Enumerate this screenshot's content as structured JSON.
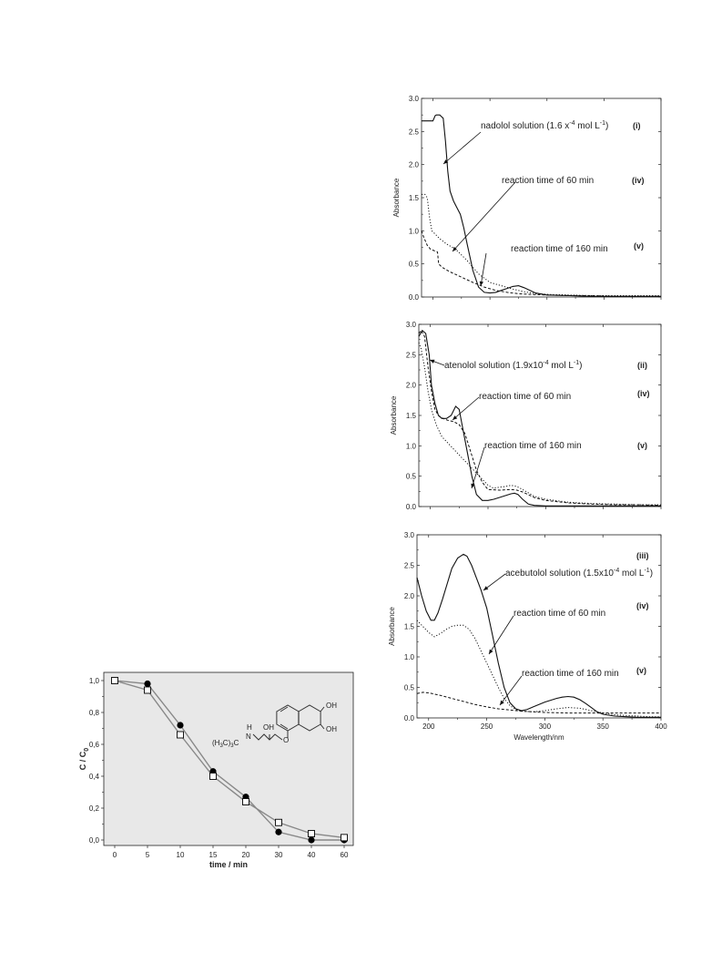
{
  "chart_data": [
    {
      "type": "line",
      "id": "nadolol",
      "xlim": [
        190,
        400
      ],
      "ylim": [
        0,
        3.0
      ],
      "yticks": [
        "0.0",
        "0.5",
        "1.0",
        "1.5",
        "2.0",
        "2.5",
        "3.0"
      ],
      "ylabel": "Absorbance",
      "annotations": [
        {
          "text": "nadolol solution (1.6 x",
          "sup": "-4",
          "tail": " mol L",
          "sup2": "-1",
          "close": ")",
          "tag": "(i)"
        },
        {
          "text": "reaction time of 60 min",
          "tag": "(iv)"
        },
        {
          "text": "reaction time of 160 min",
          "tag": "(v)"
        }
      ],
      "series": [
        {
          "style": "solid",
          "x": [
            190,
            192,
            200,
            202,
            203,
            206,
            209,
            211,
            213,
            215,
            218,
            221,
            224,
            227,
            230,
            235,
            240,
            245,
            250,
            255,
            260,
            265,
            270,
            275,
            280,
            290,
            300,
            320,
            340,
            360,
            380,
            400
          ],
          "y": [
            2.66,
            2.66,
            2.66,
            2.74,
            2.75,
            2.75,
            2.7,
            2.35,
            1.9,
            1.6,
            1.45,
            1.35,
            1.25,
            1.05,
            0.8,
            0.4,
            0.15,
            0.07,
            0.06,
            0.07,
            0.1,
            0.13,
            0.16,
            0.17,
            0.14,
            0.06,
            0.03,
            0.02,
            0.01,
            0.01,
            0.01,
            0.01
          ]
        },
        {
          "style": "dot",
          "x": [
            190,
            193,
            195,
            197,
            199,
            202,
            206,
            212,
            220,
            230,
            240,
            250,
            260,
            270,
            280,
            290,
            300,
            320,
            340,
            360,
            380,
            400
          ],
          "y": [
            1.55,
            1.55,
            1.5,
            1.2,
            1.0,
            0.95,
            0.88,
            0.8,
            0.72,
            0.55,
            0.35,
            0.22,
            0.17,
            0.12,
            0.08,
            0.05,
            0.04,
            0.03,
            0.02,
            0.02,
            0.02,
            0.02
          ]
        },
        {
          "style": "dash",
          "x": [
            190,
            192,
            195,
            198,
            201,
            204,
            205,
            208,
            215,
            225,
            235,
            245,
            255,
            265,
            275,
            285,
            300,
            320,
            340,
            360,
            380,
            400
          ],
          "y": [
            1.0,
            0.9,
            0.78,
            0.72,
            0.7,
            0.68,
            0.5,
            0.45,
            0.38,
            0.3,
            0.22,
            0.15,
            0.1,
            0.07,
            0.05,
            0.04,
            0.03,
            0.02,
            0.02,
            0.01,
            0.01,
            0.01
          ]
        }
      ]
    },
    {
      "type": "line",
      "id": "atenolol",
      "xlim": [
        190,
        400
      ],
      "ylim": [
        0,
        3.0
      ],
      "yticks": [
        "0.0",
        "0.5",
        "1.0",
        "1.5",
        "2.0",
        "2.5",
        "3.0"
      ],
      "ylabel": "Absorbance",
      "annotations": [
        {
          "text": "atenolol solution (1.9x10",
          "sup": "-4",
          "tail": " mol L",
          "sup2": "-1",
          "close": ")",
          "tag": "(ii)"
        },
        {
          "text": "reaction time of 60 min",
          "tag": "(iv)"
        },
        {
          "text": "reaction time of 160 min",
          "tag": "(v)"
        }
      ],
      "series": [
        {
          "style": "solid",
          "x": [
            190,
            193,
            196,
            199,
            201,
            204,
            207,
            210,
            214,
            218,
            222,
            225,
            228,
            232,
            236,
            240,
            245,
            250,
            255,
            260,
            265,
            270,
            273,
            276,
            280,
            285,
            290,
            300,
            320,
            340,
            360,
            380,
            400
          ],
          "y": [
            2.8,
            2.9,
            2.85,
            2.5,
            2.0,
            1.7,
            1.5,
            1.45,
            1.45,
            1.5,
            1.65,
            1.6,
            1.3,
            0.9,
            0.5,
            0.2,
            0.1,
            0.1,
            0.12,
            0.15,
            0.18,
            0.21,
            0.22,
            0.2,
            0.12,
            0.04,
            0.02,
            0.01,
            0.01,
            0.01,
            0.01,
            0.01,
            0.01
          ]
        },
        {
          "style": "dash",
          "x": [
            190,
            192,
            195,
            198,
            201,
            204,
            207,
            211,
            215,
            220,
            225,
            230,
            235,
            240,
            245,
            250,
            260,
            270,
            275,
            280,
            290,
            300,
            320,
            340,
            360,
            380,
            400
          ],
          "y": [
            2.85,
            2.9,
            2.8,
            2.3,
            1.9,
            1.6,
            1.5,
            1.45,
            1.42,
            1.4,
            1.35,
            1.2,
            0.9,
            0.6,
            0.4,
            0.28,
            0.27,
            0.28,
            0.27,
            0.24,
            0.15,
            0.1,
            0.06,
            0.04,
            0.03,
            0.03,
            0.02
          ]
        },
        {
          "style": "dot",
          "x": [
            190,
            192,
            195,
            198,
            201,
            205,
            210,
            215,
            220,
            225,
            230,
            235,
            240,
            245,
            250,
            255,
            260,
            265,
            270,
            275,
            280,
            290,
            300,
            320,
            340,
            360,
            380,
            400
          ],
          "y": [
            2.7,
            2.6,
            2.3,
            1.9,
            1.6,
            1.35,
            1.15,
            1.05,
            0.95,
            0.85,
            0.75,
            0.65,
            0.55,
            0.45,
            0.35,
            0.3,
            0.32,
            0.33,
            0.35,
            0.33,
            0.28,
            0.17,
            0.12,
            0.07,
            0.05,
            0.04,
            0.03,
            0.03
          ]
        }
      ]
    },
    {
      "type": "line",
      "id": "acebutolol",
      "xlim": [
        190,
        400
      ],
      "ylim": [
        0,
        3.0
      ],
      "yticks": [
        "0.0",
        "0.5",
        "1.0",
        "1.5",
        "2.0",
        "2.5",
        "3.0"
      ],
      "xticks": [
        "200",
        "250",
        "300",
        "350",
        "400"
      ],
      "ylabel": "Absorbance",
      "xlabel": "Wavelength/nm",
      "annotations": [
        {
          "text": "acebutolol solution (1.5x10",
          "sup": "-4",
          "tail": " mol L",
          "sup2": "-1",
          "close": ")",
          "tag": "(iii)"
        },
        {
          "text": "reaction time of 60 min",
          "tag": "(iv)"
        },
        {
          "text": "reaction time of 160 min",
          "tag": "(v)"
        }
      ],
      "series": [
        {
          "style": "solid",
          "x": [
            190,
            194,
            198,
            202,
            205,
            208,
            212,
            216,
            220,
            225,
            230,
            233,
            237,
            241,
            245,
            250,
            255,
            260,
            265,
            270,
            275,
            280,
            285,
            290,
            295,
            300,
            305,
            310,
            315,
            320,
            325,
            330,
            335,
            340,
            345,
            350,
            360,
            370,
            380,
            390,
            400
          ],
          "y": [
            2.3,
            2.0,
            1.75,
            1.6,
            1.6,
            1.72,
            1.95,
            2.2,
            2.45,
            2.62,
            2.68,
            2.65,
            2.5,
            2.3,
            2.1,
            1.8,
            1.35,
            0.9,
            0.5,
            0.25,
            0.15,
            0.12,
            0.14,
            0.18,
            0.22,
            0.26,
            0.29,
            0.32,
            0.34,
            0.35,
            0.34,
            0.3,
            0.24,
            0.17,
            0.1,
            0.06,
            0.03,
            0.02,
            0.01,
            0.01,
            0.01
          ]
        },
        {
          "style": "dot",
          "x": [
            190,
            195,
            200,
            205,
            210,
            215,
            220,
            225,
            230,
            235,
            240,
            245,
            250,
            255,
            260,
            265,
            270,
            275,
            280,
            290,
            300,
            310,
            320,
            330,
            340,
            350,
            360,
            370,
            380,
            390,
            400
          ],
          "y": [
            1.6,
            1.5,
            1.4,
            1.33,
            1.38,
            1.45,
            1.5,
            1.52,
            1.52,
            1.45,
            1.3,
            1.1,
            0.9,
            0.7,
            0.5,
            0.32,
            0.2,
            0.14,
            0.11,
            0.1,
            0.12,
            0.15,
            0.17,
            0.16,
            0.12,
            0.08,
            0.05,
            0.04,
            0.03,
            0.02,
            0.02
          ]
        },
        {
          "style": "dash",
          "x": [
            190,
            195,
            200,
            210,
            220,
            230,
            240,
            250,
            260,
            270,
            280,
            290,
            300,
            320,
            340,
            360,
            380,
            400
          ],
          "y": [
            0.4,
            0.42,
            0.41,
            0.37,
            0.32,
            0.27,
            0.22,
            0.18,
            0.15,
            0.13,
            0.11,
            0.1,
            0.09,
            0.08,
            0.08,
            0.08,
            0.08,
            0.08
          ]
        }
      ]
    },
    {
      "type": "line",
      "id": "kinetics",
      "categories": [
        "0",
        "5",
        "10",
        "15",
        "20",
        "30",
        "40",
        "60"
      ],
      "yticks": [
        "0,0",
        "0,2",
        "0,4",
        "0,6",
        "0,8",
        "1,0"
      ],
      "ylim": [
        0,
        1.05
      ],
      "xlabel": "time / min",
      "ylabel": "C / C",
      "ylabel_sub": "0",
      "molecule_labels": {
        "oh1": "OH",
        "oh2": "OH",
        "oh3": "OH",
        "nh": "H",
        "n": "N",
        "tbu": "(H",
        "tbu_sub": "3",
        "tbu_tail": "C)",
        "tbu_sub2": "3",
        "tbu_end": "C"
      },
      "series": [
        {
          "marker": "filled-circle",
          "values": [
            1.0,
            0.98,
            0.72,
            0.43,
            0.27,
            0.05,
            0.0,
            0.0
          ]
        },
        {
          "marker": "open-square",
          "values": [
            1.0,
            0.94,
            0.66,
            0.4,
            0.24,
            0.11,
            0.04,
            0.015
          ]
        }
      ]
    }
  ]
}
